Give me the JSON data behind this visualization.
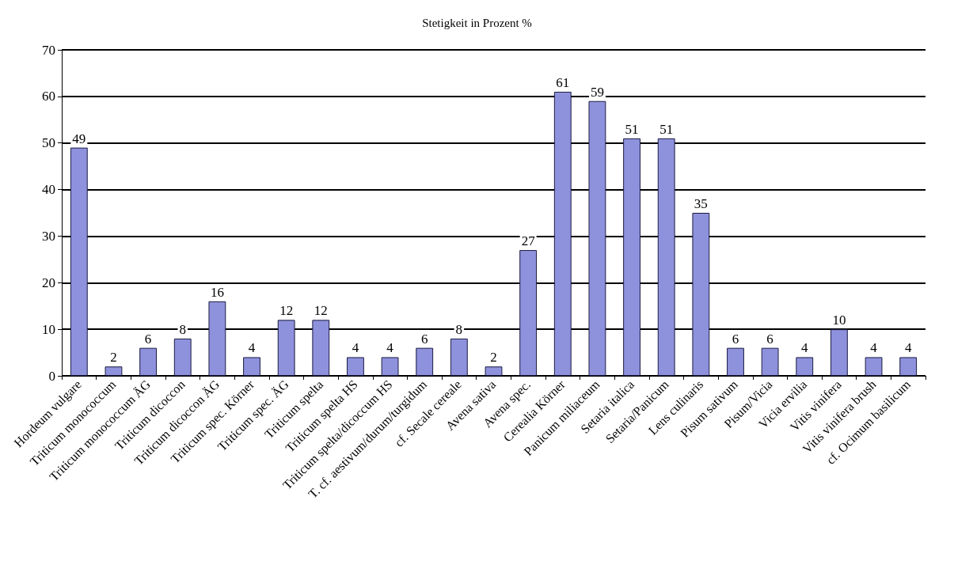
{
  "chart_data": {
    "type": "bar",
    "title": "Stetigkeit in Prozent %",
    "categories": [
      "Hordeum vulgare",
      "Triticum monococcum",
      "Triticum monococcum ÄG",
      "Triticum dicoccon",
      "Triticum dicoccon ÄG",
      "Triticum spec. Körner",
      "Triticum spec. ÄG",
      "Triticum spelta",
      "Triticum spelta HS",
      "Triticum spelta/dicoccum HS",
      "T. cf. aestivum/durum/turgidum",
      "cf. Secale cereale",
      "Avena sativa",
      "Avena spec.",
      "Cerealia Körner",
      "Panicum miliaceum",
      "Setaria italica",
      "Setaria/Panicum",
      "Lens culinaris",
      "Pisum sativum",
      "Pisum/Vicia",
      "Vicia ervilia",
      "Vitis vinifera",
      "Vitis vinifera brush",
      "cf. Ocimum basilicum"
    ],
    "values": [
      49,
      2,
      6,
      8,
      16,
      4,
      12,
      12,
      4,
      4,
      6,
      8,
      2,
      27,
      61,
      59,
      51,
      51,
      35,
      6,
      6,
      4,
      10,
      4,
      4
    ],
    "color": "#8e92dc",
    "ylim": [
      0,
      70
    ],
    "yticks": [
      0,
      10,
      20,
      30,
      40,
      50,
      60,
      70
    ],
    "grid": "y",
    "data_labels": true
  }
}
